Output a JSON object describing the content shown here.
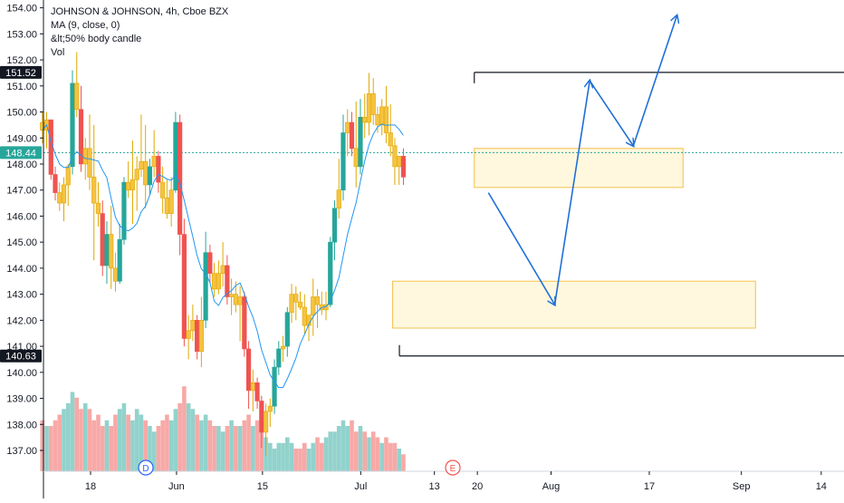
{
  "legend": {
    "title": "JOHNSON & JOHNSON, 4h, Cboe BZX",
    "ma": "MA (9, close, 0)",
    "indicator": "&lt;50% body candle",
    "vol": "Vol"
  },
  "chart_data": {
    "type": "candlestick",
    "y_ticks": [
      "137.00",
      "138.00",
      "139.00",
      "140.00",
      "141.00",
      "142.00",
      "143.00",
      "144.00",
      "145.00",
      "146.00",
      "147.00",
      "148.00",
      "149.00",
      "150.00",
      "151.00",
      "152.00",
      "153.00",
      "154.00"
    ],
    "ylim": [
      136.2,
      154.3
    ],
    "x_ticks": [
      {
        "label": "18",
        "day": 18
      },
      {
        "label": "Jun",
        "day": 32
      },
      {
        "label": "15",
        "day": 46
      },
      {
        "label": "Jul",
        "day": 62
      },
      {
        "label": "13",
        "day": 74
      },
      {
        "label": "20",
        "day": 81
      },
      {
        "label": "Aug",
        "day": 93
      },
      {
        "label": "17",
        "day": 109
      },
      {
        "label": "Sep",
        "day": 124
      },
      {
        "label": "14",
        "day": 137
      }
    ],
    "price_labels": [
      {
        "text": "151.52",
        "value": 151.52,
        "color": "#131722"
      },
      {
        "text": "148.44",
        "value": 148.44,
        "color": "#26a69a"
      },
      {
        "text": "140.63",
        "value": 140.63,
        "color": "#131722"
      }
    ],
    "current_price": 148.44,
    "levels": [
      {
        "value": 151.52,
        "day_start": 80.5
      },
      {
        "value": 140.63,
        "day_start": 68.3
      }
    ],
    "zones": [
      {
        "top": 148.6,
        "bottom": 147.1,
        "day_start": 80.5,
        "day_end": 114.5
      },
      {
        "top": 143.5,
        "bottom": 141.7,
        "day_start": 67.2,
        "day_end": 126.3
      }
    ],
    "projection": [
      {
        "day": 82.8,
        "price": 146.9
      },
      {
        "day": 93.6,
        "price": 142.6
      },
      {
        "day": 99.3,
        "price": 151.2
      },
      {
        "day": 106.4,
        "price": 148.7
      },
      {
        "day": 113.5,
        "price": 153.7
      }
    ],
    "event_markers": [
      {
        "label": "D",
        "day": 27
      },
      {
        "label": "E",
        "day": 77
      }
    ],
    "vol_max": 100,
    "candles": [
      [
        149.6,
        150.0,
        148.8,
        149.3,
        45
      ],
      [
        149.3,
        150.0,
        148.6,
        149.7,
        40
      ],
      [
        149.7,
        149.7,
        147.4,
        147.6,
        40
      ],
      [
        147.6,
        147.9,
        146.6,
        146.9,
        45
      ],
      [
        146.9,
        147.3,
        146.2,
        146.5,
        50
      ],
      [
        146.5,
        147.5,
        145.8,
        147.2,
        55
      ],
      [
        147.2,
        148.0,
        146.4,
        147.9,
        60
      ],
      [
        147.9,
        151.6,
        147.6,
        151.1,
        70
      ],
      [
        151.1,
        152.3,
        149.8,
        150.1,
        65
      ],
      [
        150.1,
        151.0,
        147.7,
        148.0,
        55
      ],
      [
        148.0,
        149.0,
        147.4,
        148.6,
        60
      ],
      [
        148.6,
        149.9,
        147.0,
        147.5,
        55
      ],
      [
        147.5,
        149.5,
        144.3,
        146.5,
        45
      ],
      [
        146.5,
        147.3,
        145.6,
        146.1,
        50
      ],
      [
        146.1,
        146.6,
        143.7,
        144.1,
        40
      ],
      [
        144.1,
        145.8,
        143.4,
        145.3,
        45
      ],
      [
        145.3,
        146.4,
        143.2,
        144.0,
        40
      ],
      [
        144.0,
        144.6,
        143.1,
        143.5,
        50
      ],
      [
        143.5,
        145.7,
        143.4,
        145.1,
        55
      ],
      [
        145.1,
        147.5,
        144.9,
        147.3,
        60
      ],
      [
        147.3,
        148.1,
        146.7,
        147.0,
        50
      ],
      [
        147.0,
        148.9,
        145.7,
        147.4,
        45
      ],
      [
        147.4,
        148.3,
        146.2,
        147.8,
        55
      ],
      [
        147.8,
        149.9,
        147.5,
        148.1,
        50
      ],
      [
        148.1,
        149.5,
        146.3,
        147.2,
        45
      ],
      [
        147.2,
        148.2,
        146.8,
        147.9,
        40
      ],
      [
        147.9,
        149.3,
        147.5,
        148.3,
        35
      ],
      [
        148.3,
        148.5,
        146.9,
        147.3,
        40
      ],
      [
        147.3,
        147.9,
        146.1,
        146.7,
        45
      ],
      [
        146.7,
        147.4,
        145.9,
        146.1,
        50
      ],
      [
        146.1,
        147.5,
        145.6,
        147.0,
        45
      ],
      [
        147.0,
        150.0,
        146.9,
        149.6,
        55
      ],
      [
        149.6,
        149.9,
        144.5,
        145.3,
        60
      ],
      [
        145.3,
        145.9,
        141.0,
        141.3,
        75
      ],
      [
        141.3,
        142.2,
        140.5,
        141.6,
        60
      ],
      [
        141.6,
        142.6,
        141.2,
        142.0,
        55
      ],
      [
        142.0,
        142.2,
        140.5,
        140.8,
        50
      ],
      [
        140.8,
        142.9,
        140.2,
        142.0,
        45
      ],
      [
        142.0,
        145.4,
        141.7,
        144.6,
        50
      ],
      [
        144.6,
        144.9,
        143.4,
        143.8,
        45
      ],
      [
        143.8,
        144.2,
        142.9,
        143.2,
        40
      ],
      [
        143.2,
        144.3,
        143.0,
        143.8,
        40
      ],
      [
        143.8,
        145.0,
        143.3,
        144.1,
        35
      ],
      [
        144.1,
        144.5,
        142.6,
        142.9,
        40
      ],
      [
        142.9,
        143.6,
        142.2,
        143.0,
        45
      ],
      [
        143.0,
        143.5,
        142.3,
        142.6,
        40
      ],
      [
        142.6,
        143.3,
        141.2,
        142.9,
        40
      ],
      [
        142.9,
        143.1,
        140.6,
        140.9,
        45
      ],
      [
        140.9,
        141.2,
        138.6,
        139.3,
        50
      ],
      [
        139.3,
        140.1,
        138.5,
        139.6,
        40
      ],
      [
        139.6,
        139.8,
        138.6,
        138.9,
        45
      ],
      [
        138.9,
        139.1,
        137.1,
        137.7,
        35
      ],
      [
        137.7,
        138.8,
        136.8,
        138.5,
        30
      ],
      [
        138.5,
        139.0,
        137.9,
        138.7,
        25
      ],
      [
        138.7,
        140.5,
        138.4,
        140.2,
        20
      ],
      [
        140.2,
        141.2,
        139.9,
        140.9,
        25
      ],
      [
        140.9,
        141.4,
        140.4,
        141.0,
        25
      ],
      [
        141.0,
        142.5,
        140.6,
        142.3,
        30
      ],
      [
        142.3,
        143.4,
        141.9,
        143.0,
        25
      ],
      [
        143.0,
        143.3,
        142.0,
        142.7,
        20
      ],
      [
        142.7,
        143.1,
        142.4,
        142.5,
        20
      ],
      [
        142.5,
        143.0,
        141.5,
        141.8,
        25
      ],
      [
        141.8,
        142.1,
        141.2,
        142.2,
        20
      ],
      [
        142.2,
        143.6,
        141.4,
        142.9,
        25
      ],
      [
        142.9,
        143.2,
        141.7,
        142.6,
        30
      ],
      [
        142.6,
        143.1,
        142.2,
        142.4,
        25
      ],
      [
        142.4,
        143.1,
        142.0,
        142.6,
        30
      ],
      [
        142.6,
        145.2,
        142.5,
        145.0,
        35
      ],
      [
        145.0,
        146.6,
        144.3,
        146.3,
        35
      ],
      [
        146.3,
        148.2,
        145.9,
        147.0,
        40
      ],
      [
        147.0,
        149.9,
        146.6,
        149.2,
        45
      ],
      [
        149.2,
        150.1,
        148.3,
        149.6,
        40
      ],
      [
        149.6,
        150.0,
        148.3,
        148.6,
        45
      ],
      [
        148.6,
        150.4,
        147.1,
        147.9,
        35
      ],
      [
        147.9,
        150.5,
        147.6,
        149.8,
        40
      ],
      [
        149.8,
        150.7,
        149.0,
        149.6,
        35
      ],
      [
        149.6,
        151.5,
        149.1,
        150.7,
        30
      ],
      [
        150.7,
        151.3,
        149.5,
        149.9,
        35
      ],
      [
        149.9,
        150.2,
        149.2,
        149.5,
        30
      ],
      [
        149.5,
        150.5,
        149.1,
        150.2,
        25
      ],
      [
        150.2,
        151.0,
        148.8,
        149.2,
        30
      ],
      [
        149.2,
        150.3,
        148.3,
        148.7,
        25
      ],
      [
        148.7,
        149.0,
        147.2,
        147.9,
        25
      ],
      [
        147.9,
        148.2,
        147.2,
        148.3,
        20
      ],
      [
        148.3,
        148.6,
        147.2,
        147.5,
        15
      ]
    ]
  }
}
